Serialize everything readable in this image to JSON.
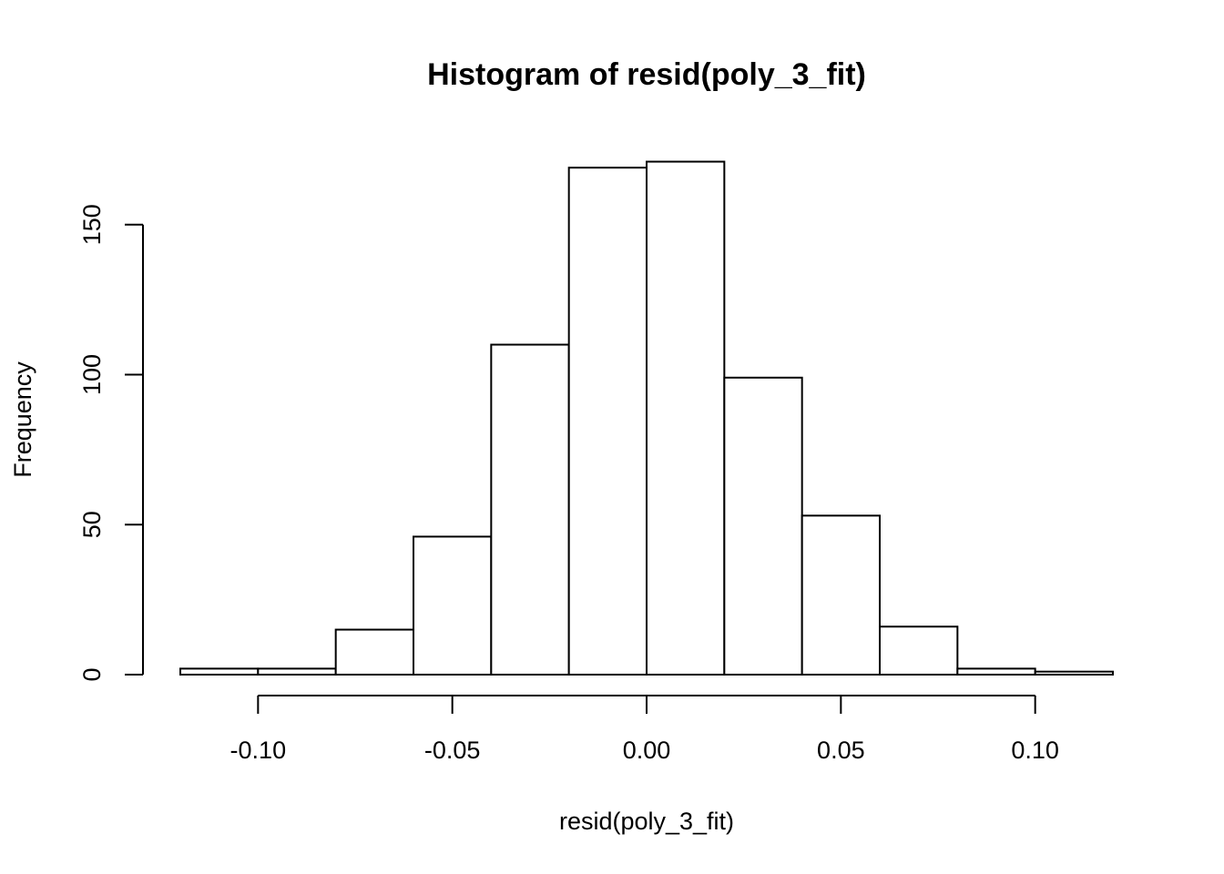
{
  "chart_data": {
    "type": "bar",
    "title": "Histogram of resid(poly_3_fit)",
    "xlabel": "resid(poly_3_fit)",
    "ylabel": "Frequency",
    "bin_edges": [
      -0.12,
      -0.1,
      -0.08,
      -0.06,
      -0.04,
      -0.02,
      0.0,
      0.02,
      0.04,
      0.06,
      0.08,
      0.1,
      0.12
    ],
    "values": [
      2,
      2,
      15,
      46,
      110,
      169,
      171,
      99,
      53,
      16,
      2,
      1
    ],
    "x_ticks": [
      -0.1,
      -0.05,
      0.0,
      0.05,
      0.1
    ],
    "x_tick_labels": [
      "-0.10",
      "-0.05",
      "0.00",
      "0.05",
      "0.10"
    ],
    "y_ticks": [
      0,
      50,
      100,
      150
    ],
    "y_tick_labels": [
      "0",
      "50",
      "100",
      "150"
    ],
    "xlim": [
      -0.12,
      0.12
    ],
    "ylim": [
      0,
      171
    ],
    "grid": false
  }
}
